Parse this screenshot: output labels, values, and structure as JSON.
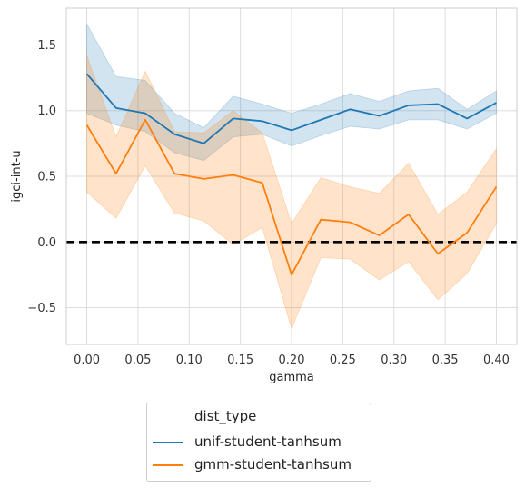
{
  "chart_data": {
    "type": "line",
    "title": "",
    "xlabel": "gamma",
    "ylabel": "igci-int-u",
    "xlim": [
      -0.02,
      0.42
    ],
    "ylim": [
      -0.78,
      1.78
    ],
    "xticks": [
      0.0,
      0.05,
      0.1,
      0.15,
      0.2,
      0.25,
      0.3,
      0.35,
      0.4
    ],
    "xtick_labels": [
      "0.00",
      "0.05",
      "0.10",
      "0.15",
      "0.20",
      "0.25",
      "0.30",
      "0.35",
      "0.40"
    ],
    "yticks": [
      -0.5,
      0.0,
      0.5,
      1.0,
      1.5
    ],
    "ytick_labels": [
      "−0.5",
      "0.0",
      "0.5",
      "1.0",
      "1.5"
    ],
    "grid": true,
    "reference_line": {
      "y": 0.0,
      "style": "dashed",
      "color": "#000000"
    },
    "x": [
      0.0,
      0.0286,
      0.0571,
      0.0857,
      0.1143,
      0.1429,
      0.1714,
      0.2,
      0.2286,
      0.2571,
      0.2857,
      0.3143,
      0.3429,
      0.3714,
      0.4
    ],
    "series": [
      {
        "name": "unif-student-tanhsum",
        "color": "#1f77b4",
        "values": [
          1.28,
          1.02,
          0.98,
          0.82,
          0.75,
          0.94,
          0.92,
          0.85,
          0.93,
          1.01,
          0.96,
          1.04,
          1.05,
          0.94,
          1.06
        ],
        "ci_low": [
          0.98,
          0.89,
          0.84,
          0.68,
          0.62,
          0.8,
          0.82,
          0.73,
          0.81,
          0.88,
          0.86,
          0.93,
          0.93,
          0.86,
          0.98
        ],
        "ci_high": [
          1.66,
          1.26,
          1.23,
          0.98,
          0.87,
          1.11,
          1.05,
          0.98,
          1.05,
          1.13,
          1.07,
          1.15,
          1.17,
          1.01,
          1.15
        ]
      },
      {
        "name": "gmm-student-tanhsum",
        "color": "#ff7f0e",
        "values": [
          0.89,
          0.52,
          0.93,
          0.52,
          0.48,
          0.51,
          0.45,
          -0.25,
          0.17,
          0.15,
          0.05,
          0.21,
          -0.09,
          0.07,
          0.42
        ],
        "ci_low": [
          0.38,
          0.18,
          0.58,
          0.22,
          0.16,
          -0.02,
          0.11,
          -0.66,
          -0.12,
          -0.13,
          -0.29,
          -0.15,
          -0.44,
          -0.24,
          0.14
        ],
        "ci_high": [
          1.42,
          0.8,
          1.3,
          0.84,
          0.83,
          1.0,
          0.83,
          0.14,
          0.49,
          0.42,
          0.37,
          0.6,
          0.21,
          0.38,
          0.71
        ]
      }
    ],
    "legend": {
      "title": "dist_type",
      "placement": "below",
      "items": [
        "unif-student-tanhsum",
        "gmm-student-tanhsum"
      ]
    }
  }
}
